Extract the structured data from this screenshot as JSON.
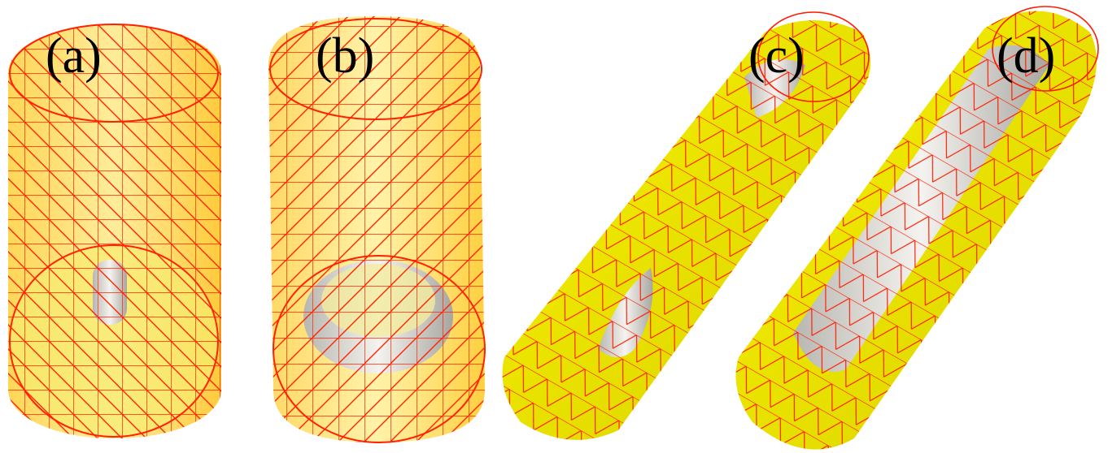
{
  "panels": [
    {
      "label": "(a)"
    },
    {
      "label": "(b)"
    },
    {
      "label": "(c)"
    },
    {
      "label": "(d)"
    }
  ],
  "colors": {
    "mesh": "#ff1a00",
    "surface_yellow": "#f2ee1c",
    "surface_shadow": "#c9b800",
    "inner_core": "#e4e2da",
    "background": "#ffffff"
  }
}
